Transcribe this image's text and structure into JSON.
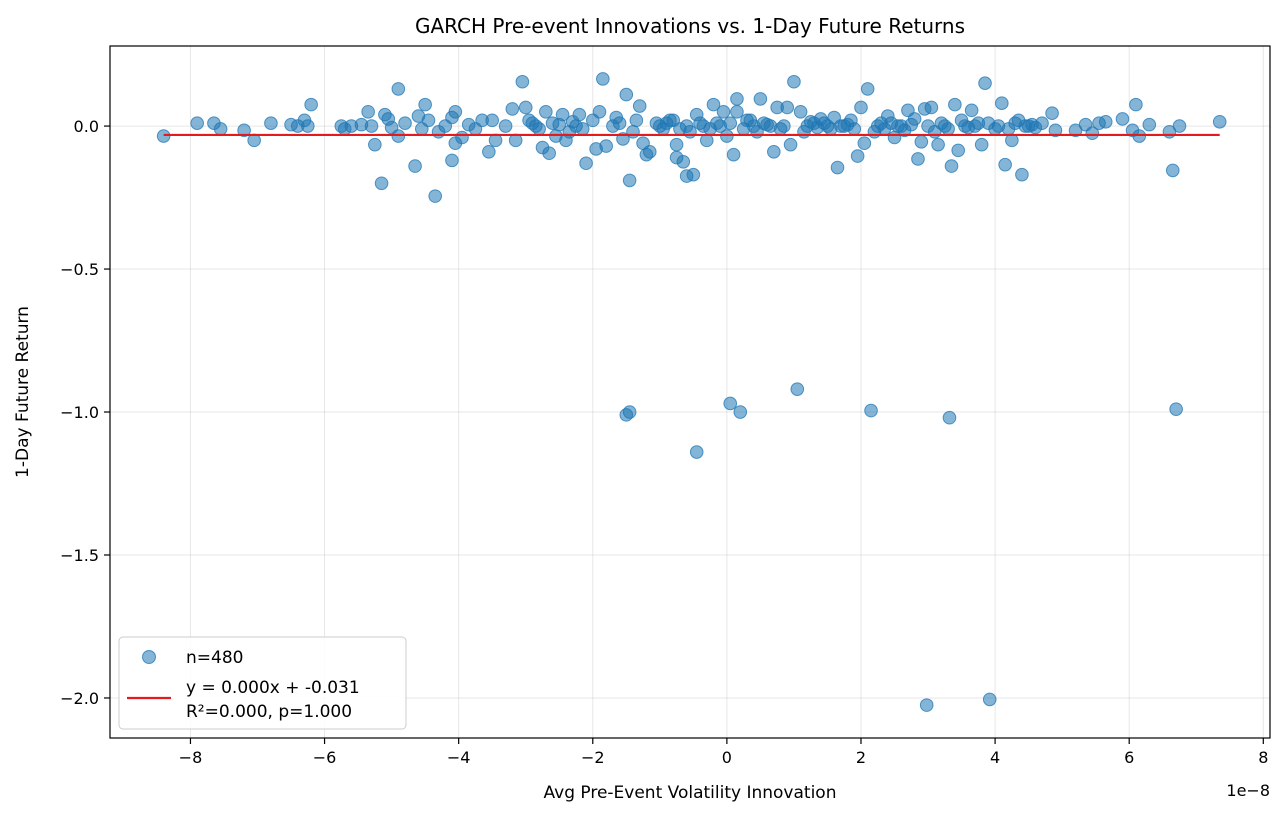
{
  "chart_data": {
    "type": "scatter",
    "title": "GARCH Pre-event Innovations vs. 1-Day Future Returns",
    "xlabel": "Avg Pre-Event Volatility Innovation",
    "ylabel": "1-Day Future Return",
    "x_scale_label": "1e−8",
    "x_scale": 1e-08,
    "xlim": [
      -9.2,
      8.1
    ],
    "ylim": [
      -2.14,
      0.28
    ],
    "xticks": [
      -8,
      -6,
      -4,
      -2,
      0,
      2,
      4,
      6,
      8
    ],
    "xtick_labels": [
      "−8",
      "−6",
      "−4",
      "−2",
      "0",
      "2",
      "4",
      "6",
      "8"
    ],
    "yticks": [
      0.0,
      -0.5,
      -1.0,
      -1.5,
      -2.0
    ],
    "ytick_labels": [
      "0.0",
      "−0.5",
      "−1.0",
      "−1.5",
      "−2.0"
    ],
    "grid": true,
    "legend_position": "lower-left",
    "legend": [
      "n=480",
      "y = 0.000x + -0.031",
      "R²=0.000, p=1.000"
    ],
    "point_color": "#1f77b4",
    "line_color": "#e41a1c",
    "fit_line": {
      "slope": 0.0,
      "intercept": -0.031,
      "x_range": [
        -8.4,
        7.35
      ]
    },
    "series": [
      {
        "name": "n=480",
        "points": [
          [
            -8.4,
            -0.035
          ],
          [
            -7.9,
            0.01
          ],
          [
            -7.65,
            0.01
          ],
          [
            -7.55,
            -0.01
          ],
          [
            -7.2,
            -0.015
          ],
          [
            -7.05,
            -0.05
          ],
          [
            -6.8,
            0.01
          ],
          [
            -6.5,
            0.005
          ],
          [
            -6.4,
            0.0
          ],
          [
            -6.3,
            0.02
          ],
          [
            -6.25,
            0.0
          ],
          [
            -6.2,
            0.075
          ],
          [
            -5.75,
            0.0
          ],
          [
            -5.7,
            -0.01
          ],
          [
            -5.6,
            0.0
          ],
          [
            -5.45,
            0.005
          ],
          [
            -5.35,
            0.05
          ],
          [
            -5.3,
            0.0
          ],
          [
            -5.25,
            -0.065
          ],
          [
            -5.15,
            -0.2
          ],
          [
            -5.1,
            0.04
          ],
          [
            -5.05,
            0.025
          ],
          [
            -5.0,
            -0.005
          ],
          [
            -4.9,
            -0.035
          ],
          [
            -4.9,
            0.13
          ],
          [
            -4.8,
            0.01
          ],
          [
            -4.65,
            -0.14
          ],
          [
            -4.6,
            0.035
          ],
          [
            -4.55,
            -0.01
          ],
          [
            -4.5,
            0.075
          ],
          [
            -4.45,
            0.02
          ],
          [
            -4.35,
            -0.245
          ],
          [
            -4.3,
            -0.02
          ],
          [
            -4.2,
            0.0
          ],
          [
            -4.1,
            0.03
          ],
          [
            -4.05,
            0.05
          ],
          [
            -4.05,
            -0.06
          ],
          [
            -4.1,
            -0.12
          ],
          [
            -3.95,
            -0.04
          ],
          [
            -3.85,
            0.005
          ],
          [
            -3.75,
            -0.01
          ],
          [
            -3.65,
            0.02
          ],
          [
            -3.55,
            -0.09
          ],
          [
            -3.5,
            0.02
          ],
          [
            -3.45,
            -0.05
          ],
          [
            -3.3,
            0.0
          ],
          [
            -3.2,
            0.06
          ],
          [
            -3.15,
            -0.05
          ],
          [
            -3.05,
            0.155
          ],
          [
            -3.0,
            0.065
          ],
          [
            -2.95,
            0.02
          ],
          [
            -2.85,
            0.0
          ],
          [
            -2.75,
            -0.075
          ],
          [
            -2.7,
            0.05
          ],
          [
            -2.65,
            -0.095
          ],
          [
            -2.6,
            0.01
          ],
          [
            -2.55,
            -0.035
          ],
          [
            -2.45,
            0.04
          ],
          [
            -2.4,
            -0.05
          ],
          [
            -2.3,
            0.015
          ],
          [
            -2.25,
            0.0
          ],
          [
            -2.2,
            0.04
          ],
          [
            -2.15,
            -0.01
          ],
          [
            -2.1,
            -0.13
          ],
          [
            -2.0,
            0.02
          ],
          [
            -1.95,
            -0.08
          ],
          [
            -1.9,
            0.05
          ],
          [
            -1.85,
            0.165
          ],
          [
            -1.8,
            -0.07
          ],
          [
            -1.7,
            0.0
          ],
          [
            -1.65,
            0.03
          ],
          [
            -1.55,
            -0.045
          ],
          [
            -1.5,
            0.11
          ],
          [
            -1.5,
            -1.01
          ],
          [
            -1.45,
            -0.19
          ],
          [
            -1.45,
            -1.0
          ],
          [
            -1.35,
            0.02
          ],
          [
            -1.3,
            0.07
          ],
          [
            -1.25,
            -0.06
          ],
          [
            -1.2,
            -0.1
          ],
          [
            -1.15,
            -0.09
          ],
          [
            -1.05,
            0.01
          ],
          [
            -0.95,
            -0.01
          ],
          [
            -0.85,
            0.02
          ],
          [
            -0.75,
            -0.065
          ],
          [
            -0.75,
            -0.11
          ],
          [
            -0.65,
            -0.125
          ],
          [
            -0.6,
            -0.175
          ],
          [
            -0.5,
            -0.17
          ],
          [
            -0.45,
            0.04
          ],
          [
            -0.45,
            -1.14
          ],
          [
            -0.35,
            0.0
          ],
          [
            -0.3,
            -0.05
          ],
          [
            -0.2,
            0.075
          ],
          [
            -0.15,
            0.01
          ],
          [
            -0.05,
            0.05
          ],
          [
            0.0,
            -0.035
          ],
          [
            0.05,
            -0.97
          ],
          [
            0.1,
            -0.1
          ],
          [
            0.15,
            0.095
          ],
          [
            0.15,
            0.05
          ],
          [
            0.2,
            -1.0
          ],
          [
            0.3,
            0.02
          ],
          [
            0.4,
            0.0
          ],
          [
            0.5,
            0.095
          ],
          [
            0.6,
            0.005
          ],
          [
            0.65,
            0.0
          ],
          [
            0.7,
            -0.09
          ],
          [
            0.75,
            0.065
          ],
          [
            0.85,
            0.0
          ],
          [
            0.9,
            0.065
          ],
          [
            0.95,
            -0.065
          ],
          [
            1.0,
            0.155
          ],
          [
            1.05,
            -0.92
          ],
          [
            1.1,
            0.05
          ],
          [
            1.2,
            0.0
          ],
          [
            1.3,
            0.01
          ],
          [
            1.4,
            0.025
          ],
          [
            1.5,
            0.0
          ],
          [
            1.6,
            0.03
          ],
          [
            1.65,
            -0.145
          ],
          [
            1.75,
            0.0
          ],
          [
            1.85,
            0.02
          ],
          [
            1.95,
            -0.105
          ],
          [
            2.0,
            0.065
          ],
          [
            2.05,
            -0.06
          ],
          [
            2.1,
            0.13
          ],
          [
            2.15,
            -0.995
          ],
          [
            2.2,
            -0.02
          ],
          [
            2.3,
            0.01
          ],
          [
            2.4,
            0.035
          ],
          [
            2.5,
            -0.04
          ],
          [
            2.6,
            0.0
          ],
          [
            2.7,
            0.055
          ],
          [
            2.8,
            0.025
          ],
          [
            2.85,
            -0.115
          ],
          [
            2.9,
            -0.055
          ],
          [
            2.95,
            0.06
          ],
          [
            2.98,
            -2.025
          ],
          [
            3.05,
            0.065
          ],
          [
            3.15,
            -0.065
          ],
          [
            3.25,
            0.0
          ],
          [
            3.32,
            -1.02
          ],
          [
            3.35,
            -0.14
          ],
          [
            3.4,
            0.075
          ],
          [
            3.45,
            -0.085
          ],
          [
            3.55,
            0.0
          ],
          [
            3.65,
            0.055
          ],
          [
            3.75,
            0.01
          ],
          [
            3.8,
            -0.065
          ],
          [
            3.85,
            0.15
          ],
          [
            3.92,
            -2.005
          ],
          [
            4.0,
            -0.01
          ],
          [
            4.1,
            0.08
          ],
          [
            4.15,
            -0.135
          ],
          [
            4.25,
            -0.05
          ],
          [
            4.35,
            0.02
          ],
          [
            4.4,
            -0.17
          ],
          [
            4.5,
            0.0
          ],
          [
            4.6,
            -0.005
          ],
          [
            4.7,
            0.01
          ],
          [
            4.85,
            0.045
          ],
          [
            4.9,
            -0.015
          ],
          [
            5.2,
            -0.015
          ],
          [
            5.35,
            0.005
          ],
          [
            5.45,
            -0.025
          ],
          [
            5.55,
            0.01
          ],
          [
            5.65,
            0.015
          ],
          [
            5.9,
            0.025
          ],
          [
            6.05,
            -0.015
          ],
          [
            6.1,
            0.075
          ],
          [
            6.15,
            -0.035
          ],
          [
            6.3,
            0.005
          ],
          [
            6.6,
            -0.02
          ],
          [
            6.65,
            -0.155
          ],
          [
            6.7,
            -0.99
          ],
          [
            6.75,
            0.0
          ],
          [
            7.35,
            0.015
          ],
          [
            -1.0,
            0.0
          ],
          [
            -0.9,
            0.01
          ],
          [
            -0.8,
            0.02
          ],
          [
            -0.7,
            -0.01
          ],
          [
            -0.6,
            0.0
          ],
          [
            -0.55,
            -0.02
          ],
          [
            -0.4,
            0.01
          ],
          [
            -0.25,
            -0.01
          ],
          [
            -0.1,
            0.0
          ],
          [
            0.05,
            0.01
          ],
          [
            0.25,
            -0.01
          ],
          [
            0.35,
            0.02
          ],
          [
            0.45,
            -0.02
          ],
          [
            0.55,
            0.01
          ],
          [
            0.8,
            -0.01
          ],
          [
            1.15,
            -0.02
          ],
          [
            1.25,
            0.015
          ],
          [
            1.35,
            -0.005
          ],
          [
            1.45,
            0.01
          ],
          [
            1.55,
            -0.01
          ],
          [
            1.7,
            0.0
          ],
          [
            1.8,
            0.005
          ],
          [
            1.9,
            -0.01
          ],
          [
            2.25,
            0.0
          ],
          [
            2.35,
            -0.01
          ],
          [
            2.45,
            0.01
          ],
          [
            2.55,
            0.0
          ],
          [
            2.65,
            -0.015
          ],
          [
            2.75,
            0.005
          ],
          [
            3.0,
            0.0
          ],
          [
            3.1,
            -0.02
          ],
          [
            3.2,
            0.01
          ],
          [
            3.3,
            -0.01
          ],
          [
            3.5,
            0.02
          ],
          [
            3.6,
            -0.005
          ],
          [
            3.7,
            0.0
          ],
          [
            3.9,
            0.01
          ],
          [
            4.05,
            0.0
          ],
          [
            4.2,
            -0.01
          ],
          [
            4.3,
            0.01
          ],
          [
            4.45,
            0.0
          ],
          [
            4.55,
            0.005
          ],
          [
            -2.9,
            0.01
          ],
          [
            -2.8,
            -0.01
          ],
          [
            -2.5,
            0.005
          ],
          [
            -2.35,
            -0.02
          ],
          [
            -1.6,
            0.01
          ],
          [
            -1.4,
            -0.02
          ]
        ]
      }
    ]
  }
}
